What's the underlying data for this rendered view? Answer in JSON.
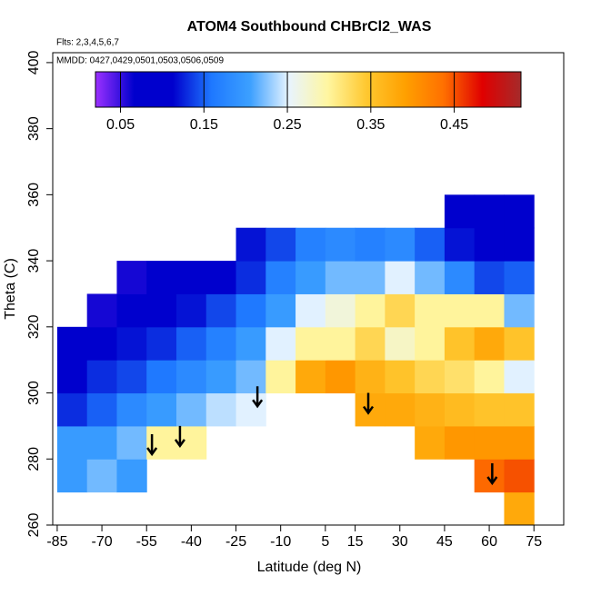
{
  "chart_data": {
    "type": "heatmap",
    "title": "ATOM4 Southbound CHBrCl2_WAS",
    "subtitle": "Flts: 2,3,4,5,6,7",
    "annotation": "MMDD: 0427,0429,0501,0503,0506,0509",
    "x_label": "Latitude (deg N)",
    "y_label": "Theta (C)",
    "xlim": [
      -86.5,
      85
    ],
    "xticks": [
      -85,
      -70,
      -55,
      -40,
      -25,
      -10,
      5,
      15,
      30,
      45,
      60,
      75
    ],
    "ylim": [
      260,
      403
    ],
    "yticks": [
      260,
      280,
      300,
      320,
      340,
      360,
      380,
      400
    ],
    "x": [
      -80,
      -70,
      -60,
      -50,
      -40,
      -30,
      -20,
      -10,
      0,
      10,
      20,
      30,
      40,
      50,
      60,
      70
    ],
    "y": [
      265,
      275,
      285,
      295,
      305,
      315,
      325,
      335,
      345,
      355
    ],
    "values": [
      [
        null,
        null,
        null,
        null,
        null,
        null,
        null,
        null,
        null,
        null,
        null,
        null,
        null,
        null,
        null,
        0.38
      ],
      [
        0.2,
        0.22,
        0.2,
        null,
        null,
        null,
        null,
        null,
        null,
        null,
        null,
        null,
        null,
        null,
        0.44,
        0.45
      ],
      [
        0.2,
        0.2,
        0.22,
        0.3,
        0.3,
        null,
        null,
        null,
        null,
        null,
        null,
        null,
        0.38,
        0.4,
        0.4,
        0.4
      ],
      [
        0.13,
        0.15,
        0.18,
        0.2,
        0.22,
        0.24,
        0.25,
        null,
        null,
        null,
        0.38,
        0.38,
        0.37,
        0.36,
        0.35,
        0.35
      ],
      [
        0.1,
        0.13,
        0.14,
        0.16,
        0.18,
        0.2,
        0.22,
        0.3,
        0.38,
        0.4,
        0.37,
        0.35,
        0.33,
        0.32,
        0.3,
        0.25
      ],
      [
        0.08,
        0.1,
        0.12,
        0.13,
        0.15,
        0.17,
        0.2,
        0.25,
        0.3,
        0.3,
        0.33,
        0.28,
        0.3,
        0.35,
        0.38,
        0.35
      ],
      [
        null,
        0.06,
        0.08,
        0.1,
        0.12,
        0.14,
        0.16,
        0.2,
        0.25,
        0.27,
        0.3,
        0.33,
        0.3,
        0.3,
        0.3,
        0.22
      ],
      [
        null,
        null,
        0.06,
        0.07,
        0.08,
        0.1,
        0.13,
        0.17,
        0.2,
        0.22,
        0.22,
        0.25,
        0.22,
        0.18,
        0.14,
        0.15
      ],
      [
        null,
        null,
        null,
        null,
        null,
        null,
        0.12,
        0.14,
        0.17,
        0.18,
        0.17,
        0.18,
        0.15,
        0.12,
        0.08,
        0.1
      ],
      [
        null,
        null,
        null,
        null,
        null,
        null,
        null,
        null,
        null,
        null,
        null,
        null,
        null,
        0.08,
        0.07,
        0.08
      ]
    ],
    "colorbar": {
      "lim": [
        0.02,
        0.53
      ],
      "ticks": [
        0.05,
        0.15,
        0.25,
        0.35,
        0.45
      ],
      "colors": [
        "#9b30ff",
        "#0000cd",
        "#0000cd",
        "#1e78ff",
        "#3ca0ff",
        "#e8f4ff",
        "#fff6a0",
        "#ffc830",
        "#ffa000",
        "#ff7000",
        "#e00000",
        "#a52a2a"
      ]
    },
    "arrows": {
      "x": [
        -53.2,
        -43.8,
        -17.8,
        19.4,
        61
      ],
      "y": [
        287.5,
        290,
        302,
        300,
        278.7
      ]
    }
  }
}
